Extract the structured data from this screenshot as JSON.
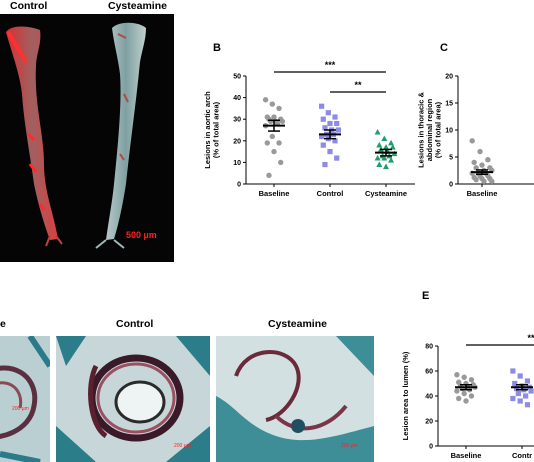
{
  "panel_a": {
    "titles": [
      "Control",
      "Cysteamine"
    ],
    "scale_bar": "500 µm",
    "colors": {
      "background": "#050505",
      "lesion": "#e02020",
      "tissue": "#9fb8b8"
    }
  },
  "panel_b": {
    "letter": "B",
    "significance": [
      "***",
      "**"
    ]
  },
  "panel_c": {
    "letter": "C"
  },
  "panel_d": {
    "titles": [
      "e",
      "Control",
      "Cysteamine"
    ],
    "scale_labels": [
      "200 µm",
      "200 µm",
      "200 µm"
    ]
  },
  "panel_e": {
    "letter": "E",
    "significance": [
      "**"
    ]
  },
  "chart_data": [
    {
      "type": "scatter",
      "panel": "B",
      "ylabel": "Lesions in aortic arch\n(% of total area)",
      "ylabel_lines": [
        "Lesions in aortic arch",
        "(% of total area)"
      ],
      "categories": [
        "Baseline",
        "Control",
        "Cysteamine"
      ],
      "yticks": [
        0,
        10,
        20,
        30,
        40,
        50
      ],
      "ylim": [
        0,
        50
      ],
      "grid": false,
      "series": [
        {
          "marker": "circle",
          "color": "#999999",
          "mean": 27,
          "sem": 2.5,
          "values": [
            39,
            37,
            35,
            31,
            31,
            30,
            30,
            29,
            29,
            29,
            28,
            27,
            22,
            19,
            19,
            15,
            10,
            4
          ]
        },
        {
          "marker": "square",
          "color": "#8c8ce6",
          "mean": 23,
          "sem": 2,
          "values": [
            36,
            33,
            31,
            30,
            28,
            28,
            26,
            25,
            25,
            23,
            23,
            22,
            21,
            20,
            18,
            15,
            12,
            9
          ]
        },
        {
          "marker": "triangle",
          "color": "#1f9e6e",
          "mean": 14.5,
          "sem": 1.5,
          "values": [
            24,
            21,
            19,
            18,
            17,
            17,
            16,
            15,
            14,
            13,
            13,
            12,
            12,
            11,
            9,
            8
          ]
        }
      ]
    },
    {
      "type": "scatter",
      "panel": "C",
      "ylabel": "Lesions in thoracic &\nabdominal region\n(% of total area)",
      "ylabel_lines": [
        "Lesions in thoracic &",
        "abdominal region",
        "(% of total area)"
      ],
      "categories": [
        "Baseline"
      ],
      "yticks": [
        0,
        5,
        10,
        15,
        20
      ],
      "ylim": [
        0,
        20
      ],
      "grid": false,
      "series": [
        {
          "marker": "circle",
          "color": "#999999",
          "mean": 2.2,
          "sem": 0.4,
          "values": [
            8,
            6,
            4.5,
            4,
            3.5,
            3,
            3,
            2.5,
            2.5,
            2,
            2,
            2,
            1.5,
            1.5,
            1.2,
            1,
            1,
            0.8,
            0.5,
            0.5
          ]
        }
      ]
    },
    {
      "type": "scatter",
      "panel": "E",
      "ylabel": "Lesion area to lumen (%)",
      "ylabel_lines": [
        "Lesion area to lumen (%)"
      ],
      "categories": [
        "Baseline",
        "Contr"
      ],
      "yticks": [
        0,
        20,
        40,
        60,
        80
      ],
      "ylim": [
        0,
        80
      ],
      "grid": false,
      "series": [
        {
          "marker": "circle",
          "color": "#999999",
          "mean": 47,
          "sem": 2,
          "values": [
            57,
            55,
            53,
            51,
            50,
            49,
            48,
            47,
            47,
            46,
            45,
            44,
            42,
            40,
            38,
            36
          ]
        },
        {
          "marker": "square",
          "color": "#8c8ce6",
          "mean": 47,
          "sem": 2,
          "values": [
            60,
            56,
            52,
            50,
            48,
            47,
            46,
            45,
            44,
            42,
            40,
            38,
            36,
            33
          ]
        }
      ]
    }
  ]
}
